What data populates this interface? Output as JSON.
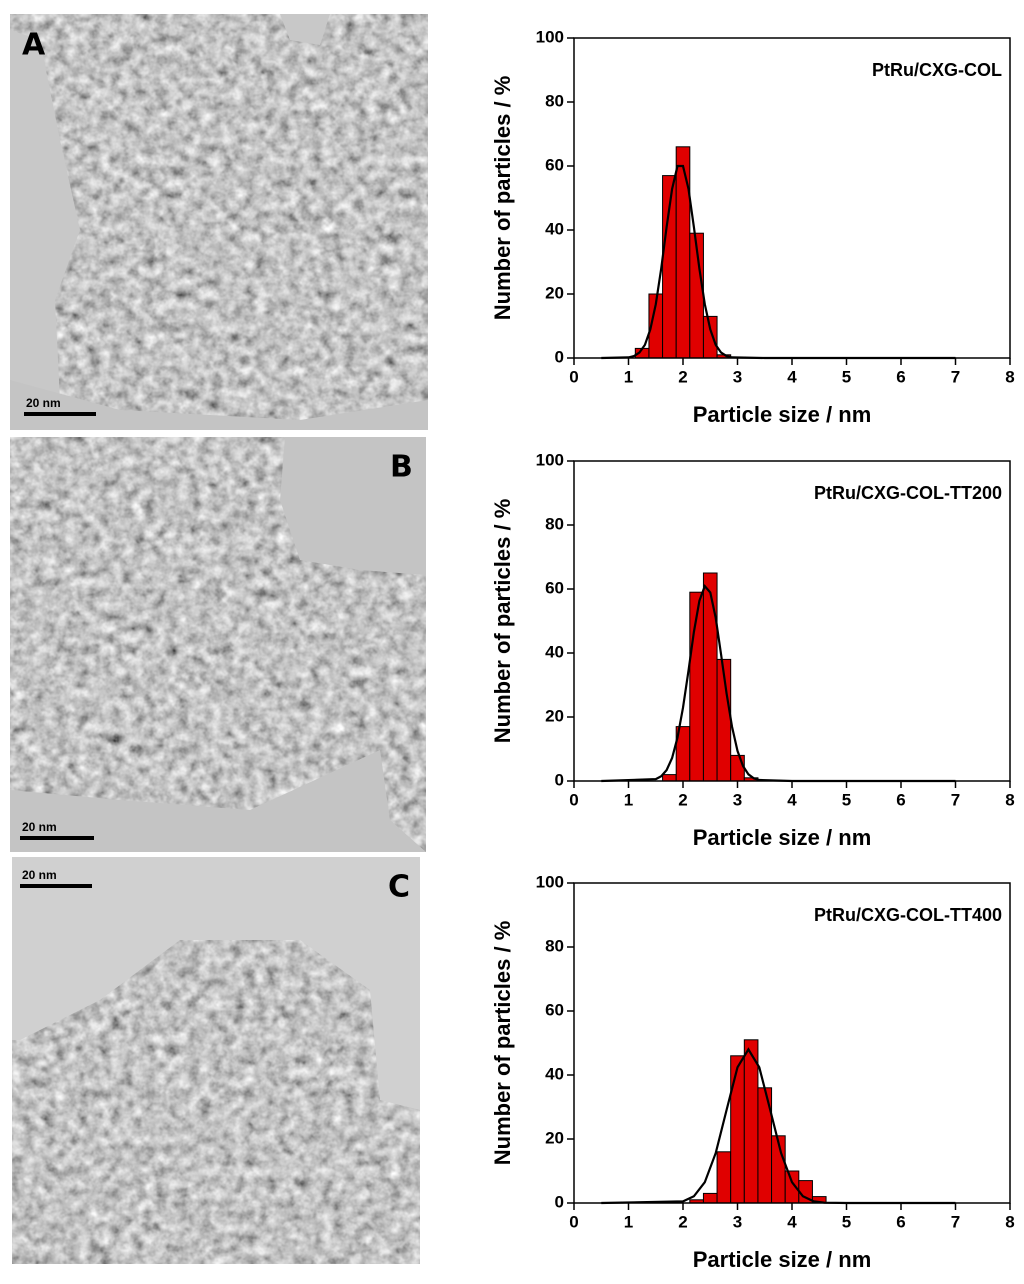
{
  "images": [
    {
      "label": "A",
      "scale_bar": "20 nm"
    },
    {
      "label": "B",
      "scale_bar": "20 nm"
    },
    {
      "label": "C",
      "scale_bar": "20 nm"
    }
  ],
  "chart_data": [
    {
      "type": "histogram",
      "annotation": "PtRu/CXG-COL",
      "xlabel": "Particle size / nm",
      "ylabel": "Number of particles / %",
      "bins": [
        1.125,
        1.375,
        1.625,
        1.875,
        2.125,
        2.375,
        2.625,
        2.875
      ],
      "values": [
        3,
        20,
        57,
        66,
        39,
        13,
        1
      ],
      "color": "#e00000",
      "curve": {
        "color": "#000000",
        "x": [
          0.5,
          1.0,
          1.1,
          1.2,
          1.3,
          1.4,
          1.5,
          1.6,
          1.7,
          1.8,
          1.9,
          2.0,
          2.1,
          2.2,
          2.3,
          2.4,
          2.5,
          2.6,
          2.7,
          2.8,
          2.9,
          3.5,
          7
        ],
        "values": [
          0,
          0.2,
          0.6,
          1.7,
          4.1,
          8.9,
          16.8,
          27.9,
          40.9,
          52.8,
          60.0,
          60.0,
          52.8,
          40.9,
          27.9,
          16.8,
          8.9,
          4.1,
          1.7,
          0.6,
          0.2,
          0,
          0
        ]
      },
      "xlim": [
        0,
        8
      ],
      "ylim": [
        0,
        100
      ],
      "xticks": [
        0,
        1,
        2,
        3,
        4,
        5,
        6,
        7,
        8
      ],
      "yticks": [
        0,
        20,
        40,
        60,
        80,
        100
      ]
    },
    {
      "type": "histogram",
      "annotation": "PtRu/CXG-COL-TT200",
      "xlabel": "Particle size / nm",
      "ylabel": "Number of particles / %",
      "bins": [
        1.625,
        1.875,
        2.125,
        2.375,
        2.625,
        2.875,
        3.125,
        3.375
      ],
      "values": [
        2,
        17,
        59,
        65,
        38,
        8,
        1
      ],
      "color": "#e00000",
      "curve": {
        "color": "#000000",
        "x": [
          0.5,
          1.5,
          1.6,
          1.7,
          1.8,
          1.9,
          2.0,
          2.1,
          2.2,
          2.3,
          2.4,
          2.5,
          2.6,
          2.7,
          2.8,
          2.9,
          3.0,
          3.1,
          3.2,
          3.3,
          3.4,
          4.0,
          7
        ],
        "values": [
          0,
          0.6,
          1.5,
          3.4,
          7.2,
          13.6,
          22.9,
          34.5,
          46.6,
          56.3,
          60.9,
          58.9,
          51.0,
          39.5,
          27.3,
          17.0,
          9.4,
          4.7,
          2.1,
          0.8,
          0.3,
          0,
          0
        ]
      },
      "xlim": [
        0,
        8
      ],
      "ylim": [
        0,
        100
      ],
      "xticks": [
        0,
        1,
        2,
        3,
        4,
        5,
        6,
        7,
        8
      ],
      "yticks": [
        0,
        20,
        40,
        60,
        80,
        100
      ]
    },
    {
      "type": "histogram",
      "annotation": "PtRu/CXG-COL-TT400",
      "xlabel": "Particle size / nm",
      "ylabel": "Number of particles / %",
      "bins": [
        2.125,
        2.375,
        2.625,
        2.875,
        3.125,
        3.375,
        3.625,
        3.875,
        4.125,
        4.375,
        4.625
      ],
      "values": [
        1,
        3,
        16,
        46,
        51,
        36,
        21,
        10,
        7,
        2
      ],
      "color": "#e00000",
      "curve": {
        "color": "#000000",
        "x": [
          0.5,
          2.0,
          2.2,
          2.4,
          2.6,
          2.8,
          3.0,
          3.2,
          3.4,
          3.6,
          3.8,
          4.0,
          4.2,
          4.4,
          4.6,
          5.0,
          7
        ],
        "values": [
          0,
          0.5,
          2.1,
          6.5,
          15.6,
          29.1,
          42.4,
          48,
          42.4,
          29.1,
          15.6,
          6.5,
          2.1,
          0.5,
          0.1,
          0,
          0
        ]
      },
      "xlim": [
        0,
        8
      ],
      "ylim": [
        0,
        100
      ],
      "xticks": [
        0,
        1,
        2,
        3,
        4,
        5,
        6,
        7,
        8
      ],
      "yticks": [
        0,
        20,
        40,
        60,
        80,
        100
      ]
    }
  ]
}
